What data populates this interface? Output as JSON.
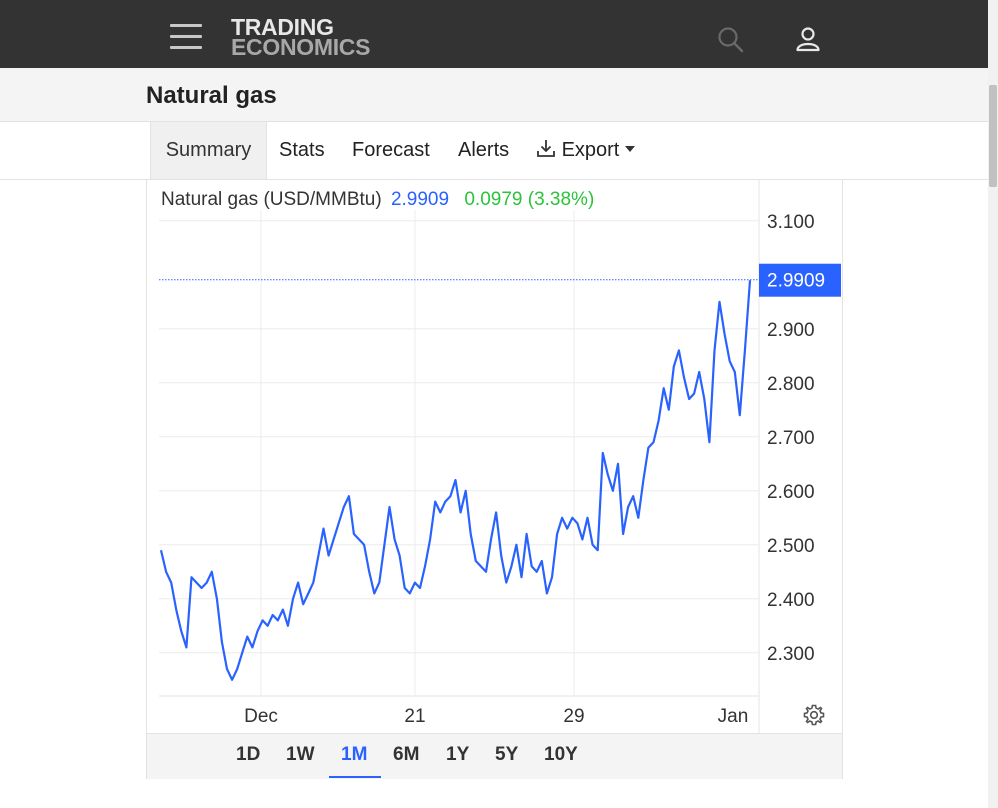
{
  "header": {
    "logo_line1": "TRADING",
    "logo_line2": "ECONOMICS",
    "menu_icon": "hamburger-menu-icon",
    "search_icon": "search-icon",
    "user_icon": "user-icon"
  },
  "page": {
    "title": "Natural gas"
  },
  "tabs": [
    {
      "label": "Summary",
      "active": true
    },
    {
      "label": "Stats"
    },
    {
      "label": "Forecast"
    },
    {
      "label": "Alerts"
    },
    {
      "label": "Export",
      "icon": "download-icon",
      "dropdown": true
    }
  ],
  "chart_header": {
    "name": "Natural gas (USD/MMBtu)",
    "value": "2.9909",
    "change": "0.0979 (3.38%)"
  },
  "range_buttons": [
    "1D",
    "1W",
    "1M",
    "6M",
    "1Y",
    "5Y",
    "10Y"
  ],
  "active_range": "1M",
  "settings_icon": "gear-icon",
  "colors": {
    "line": "#2962ff",
    "positive": "#2bc43a",
    "topbar": "#333333"
  },
  "chart_data": {
    "type": "line",
    "title": "Natural gas (USD/MMBtu)",
    "x_labels": [
      "Dec",
      "21",
      "29",
      "Jan"
    ],
    "y_ticks": [
      "2.300",
      "2.400",
      "2.500",
      "2.600",
      "2.700",
      "2.800",
      "2.900",
      "3.100"
    ],
    "ylim": [
      2.22,
      3.12
    ],
    "last_value_label": "2.9909",
    "last_value": 2.9909,
    "grid": true,
    "series": [
      {
        "values": [
          2.49,
          2.45,
          2.43,
          2.38,
          2.34,
          2.31,
          2.44,
          2.43,
          2.42,
          2.43,
          2.45,
          2.4,
          2.32,
          2.27,
          2.25,
          2.27,
          2.3,
          2.33,
          2.31,
          2.34,
          2.36,
          2.35,
          2.37,
          2.36,
          2.38,
          2.35,
          2.4,
          2.43,
          2.39,
          2.41,
          2.43,
          2.48,
          2.53,
          2.48,
          2.51,
          2.54,
          2.57,
          2.59,
          2.52,
          2.51,
          2.5,
          2.45,
          2.41,
          2.43,
          2.5,
          2.57,
          2.51,
          2.48,
          2.42,
          2.41,
          2.43,
          2.42,
          2.46,
          2.51,
          2.58,
          2.56,
          2.58,
          2.59,
          2.62,
          2.56,
          2.6,
          2.52,
          2.47,
          2.46,
          2.45,
          2.51,
          2.56,
          2.48,
          2.43,
          2.46,
          2.5,
          2.44,
          2.52,
          2.46,
          2.45,
          2.47,
          2.41,
          2.44,
          2.52,
          2.55,
          2.53,
          2.55,
          2.54,
          2.51,
          2.55,
          2.5,
          2.49,
          2.67,
          2.63,
          2.6,
          2.65,
          2.52,
          2.57,
          2.59,
          2.55,
          2.62,
          2.68,
          2.69,
          2.73,
          2.79,
          2.75,
          2.83,
          2.86,
          2.81,
          2.77,
          2.78,
          2.82,
          2.77,
          2.69,
          2.86,
          2.95,
          2.89,
          2.84,
          2.82,
          2.74,
          2.86,
          2.99
        ]
      }
    ]
  }
}
